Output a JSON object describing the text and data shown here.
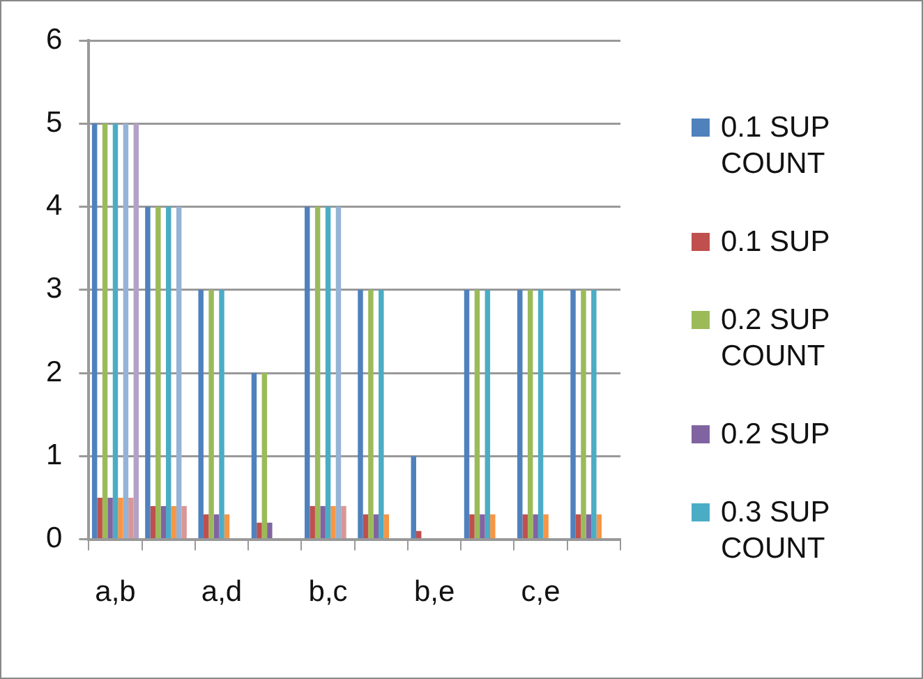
{
  "chart_data": {
    "type": "bar",
    "categories": [
      "a,b",
      null,
      "a,d",
      null,
      "b,c",
      null,
      "b,e",
      null,
      "c,e",
      null
    ],
    "series": [
      {
        "name": "0.1 SUP COUNT",
        "color": "#4f81bd",
        "values": [
          5,
          4,
          3,
          2,
          4,
          3,
          1,
          3,
          3,
          3
        ]
      },
      {
        "name": "0.1 SUP",
        "color": "#c0504d",
        "values": [
          0.5,
          0.4,
          0.3,
          0.2,
          0.4,
          0.3,
          0.1,
          0.3,
          0.3,
          0.3
        ]
      },
      {
        "name": "0.2 SUP COUNT",
        "color": "#9bbb59",
        "values": [
          5,
          4,
          3,
          2,
          4,
          3,
          null,
          3,
          3,
          3
        ]
      },
      {
        "name": "0.2 SUP",
        "color": "#8064a2",
        "values": [
          0.5,
          0.4,
          0.3,
          0.2,
          0.4,
          0.3,
          null,
          0.3,
          0.3,
          0.3
        ]
      },
      {
        "name": "0.3 SUP COUNT",
        "color": "#4bacc6",
        "values": [
          5,
          4,
          3,
          null,
          4,
          3,
          null,
          3,
          3,
          3
        ]
      },
      {
        "color": "#f79646",
        "values": [
          0.5,
          0.4,
          0.3,
          null,
          0.4,
          0.3,
          null,
          0.3,
          0.3,
          0.3
        ]
      },
      {
        "color": "#95b3d7",
        "values": [
          5,
          4,
          null,
          null,
          4,
          null,
          null,
          null,
          null,
          null
        ]
      },
      {
        "color": "#d99694",
        "values": [
          0.5,
          0.4,
          null,
          null,
          0.4,
          null,
          null,
          null,
          null,
          null
        ]
      },
      {
        "color": "#b3a2c7",
        "values": [
          5,
          null,
          null,
          null,
          null,
          null,
          null,
          null,
          null,
          null
        ]
      }
    ],
    "ylim": [
      0,
      6
    ],
    "yticks": [
      0,
      1,
      2,
      3,
      4,
      5,
      6
    ],
    "grid": "y",
    "legend": "right"
  }
}
